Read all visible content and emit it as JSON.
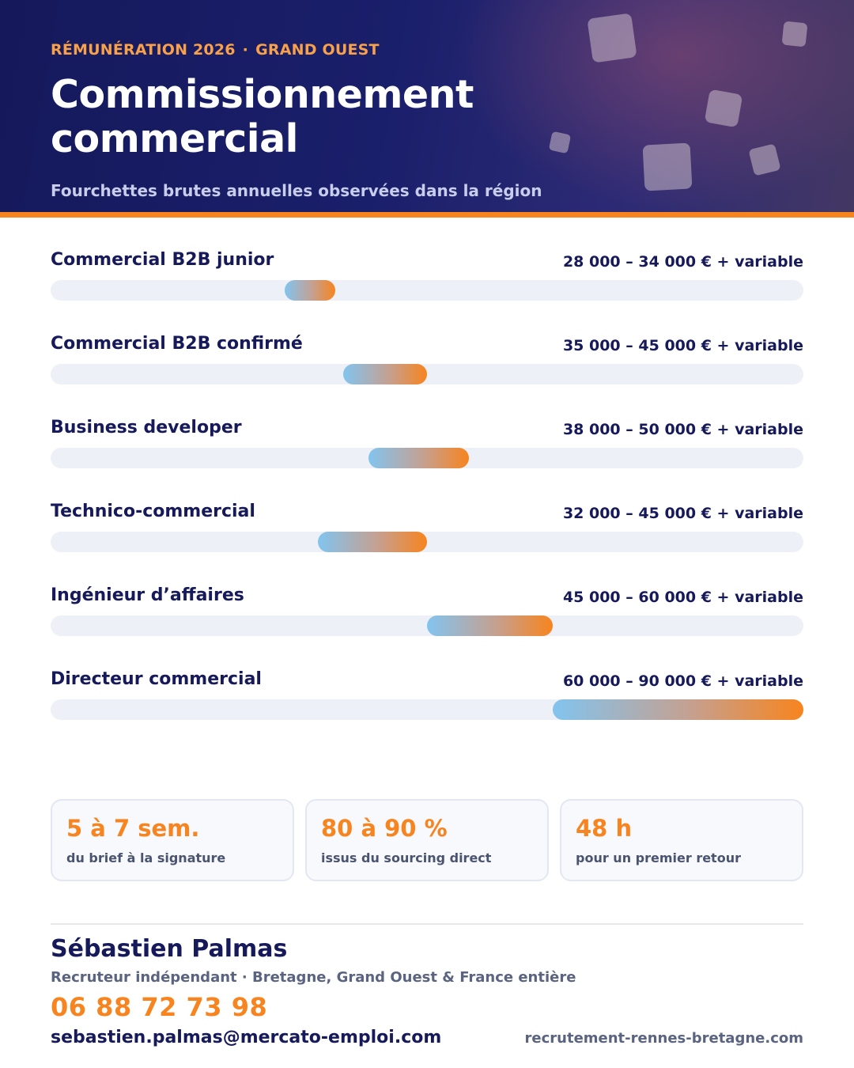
{
  "header": {
    "eyebrow_left": "RÉMUNÉRATION 2026",
    "eyebrow_sep": "·",
    "eyebrow_right": "GRAND OUEST",
    "title_line1": "Commissionnement",
    "title_line2": "commercial",
    "subtitle": "Fourchettes brutes annuelles observées dans la région"
  },
  "chart_data": {
    "type": "range-bar",
    "scale_min": 0,
    "scale_max": 90000,
    "rows": [
      {
        "label": "Commercial B2B junior",
        "range_text": "28 000 – 34 000 € + variable",
        "min": 28000,
        "max": 34000
      },
      {
        "label": "Commercial B2B confirmé",
        "range_text": "35 000 – 45 000 € + variable",
        "min": 35000,
        "max": 45000
      },
      {
        "label": "Business developer",
        "range_text": "38 000 – 50 000 € + variable",
        "min": 38000,
        "max": 50000
      },
      {
        "label": "Technico-commercial",
        "range_text": "32 000 – 45 000 € + variable",
        "min": 32000,
        "max": 45000
      },
      {
        "label": "Ingénieur d’affaires",
        "range_text": "45 000 – 60 000 € + variable",
        "min": 45000,
        "max": 60000
      },
      {
        "label": "Directeur commercial",
        "range_text": "60 000 – 90 000 € + variable",
        "min": 60000,
        "max": 90000
      }
    ]
  },
  "stats": [
    {
      "value": "5 à 7 sem.",
      "caption": "du brief à la signature"
    },
    {
      "value": "80 à 90 %",
      "caption": "issus du sourcing direct"
    },
    {
      "value": "48 h",
      "caption": "pour un premier retour"
    }
  ],
  "contact": {
    "name": "Sébastien Palmas",
    "role": "Recruteur indépendant · Bretagne, Grand Ouest & France entière",
    "phone": "06 88 72 73 98",
    "email": "sebastien.palmas@mercato-emploi.com",
    "website": "recrutement-rennes-bretagne.com"
  },
  "colors": {
    "navy": "#16195a",
    "orange": "#f7841e",
    "light_blue": "#82c4ef",
    "track": "#edf0f6"
  }
}
